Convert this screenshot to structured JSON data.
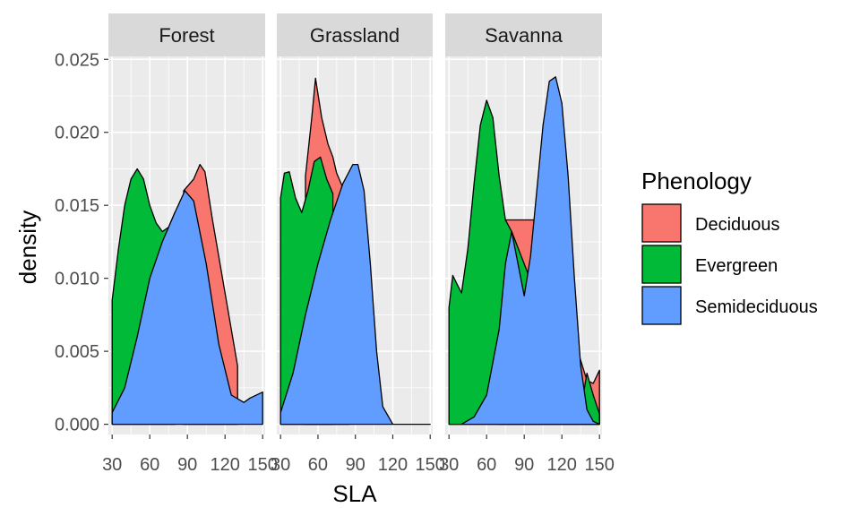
{
  "chart_data": {
    "type": "area",
    "subtype": "stacked density (faceted)",
    "xlabel": "SLA",
    "ylabel": "density",
    "xlim": [
      27,
      152
    ],
    "ylim": [
      -0.0007,
      0.0252
    ],
    "x_ticks": [
      30,
      60,
      90,
      120,
      150
    ],
    "x_tick_labels": [
      "30",
      "60",
      "90",
      "120",
      "150"
    ],
    "y_ticks": [
      0.0,
      0.005,
      0.01,
      0.015,
      0.02,
      0.025
    ],
    "y_tick_labels": [
      "0.000",
      "0.005",
      "0.010",
      "0.015",
      "0.020",
      "0.025"
    ],
    "legend": {
      "title": "Phenology",
      "position": "right",
      "entries": [
        {
          "label": "Deciduous",
          "color": "#F8766D"
        },
        {
          "label": "Evergreen",
          "color": "#00BA38"
        },
        {
          "label": "Semideciduous",
          "color": "#619CFF"
        }
      ]
    },
    "facets": [
      {
        "label": "Forest",
        "series": {
          "Deciduous": {
            "x": [
              87,
              95,
              100,
              104,
              110,
              120,
              130
            ],
            "y": [
              0.016,
              0.0168,
              0.0178,
              0.0173,
              0.014,
              0.009,
              0.004
            ]
          },
          "Evergreen": {
            "x": [
              30,
              35,
              40,
              45,
              50,
              55,
              60,
              65,
              70,
              75,
              80
            ],
            "y": [
              0.0085,
              0.012,
              0.015,
              0.0168,
              0.0175,
              0.0168,
              0.015,
              0.0138,
              0.0132,
              0.0135,
              0.0145
            ]
          },
          "Semideciduous": {
            "x": [
              30,
              40,
              50,
              60,
              70,
              80,
              88,
              95,
              105,
              115,
              125,
              135,
              140,
              150
            ],
            "y": [
              0.0008,
              0.0025,
              0.006,
              0.01,
              0.0125,
              0.0145,
              0.016,
              0.0153,
              0.011,
              0.0055,
              0.002,
              0.0015,
              0.0018,
              0.0022
            ]
          }
        }
      },
      {
        "label": "Grassland",
        "series": {
          "Deciduous": {
            "x": [
              50,
              55,
              58,
              63,
              68,
              72,
              75,
              80,
              85
            ],
            "y": [
              0.017,
              0.021,
              0.0237,
              0.021,
              0.0192,
              0.0183,
              0.0172,
              0.0162,
              0.0168
            ]
          },
          "Evergreen": {
            "x": [
              30,
              33,
              37,
              42,
              47,
              52,
              57,
              62,
              67,
              72
            ],
            "y": [
              0.0155,
              0.0172,
              0.0173,
              0.0155,
              0.0145,
              0.016,
              0.018,
              0.0183,
              0.0168,
              0.0158
            ]
          },
          "Semideciduous": {
            "x": [
              30,
              40,
              50,
              60,
              70,
              80,
              88,
              92,
              97,
              102,
              107,
              112,
              120,
              150
            ],
            "y": [
              0.0008,
              0.0035,
              0.0075,
              0.011,
              0.014,
              0.0165,
              0.0178,
              0.0178,
              0.016,
              0.011,
              0.005,
              0.0012,
              0.0,
              0.0
            ]
          }
        }
      },
      {
        "label": "Savanna",
        "series": {
          "Deciduous": {
            "x": [
              70,
              75,
              80,
              85,
              90,
              95,
              100,
              140,
              145,
              150
            ],
            "y": [
              0.014,
              0.014,
              0.014,
              0.014,
              0.014,
              0.014,
              0.014,
              0.003,
              0.0028,
              0.0037
            ]
          },
          "Evergreen": {
            "x": [
              30,
              33,
              37,
              40,
              45,
              50,
              55,
              60,
              65,
              70,
              75,
              80,
              135,
              140,
              145,
              150
            ],
            "y": [
              0.008,
              0.0102,
              0.0095,
              0.009,
              0.012,
              0.0165,
              0.0205,
              0.0222,
              0.021,
              0.017,
              0.014,
              0.0132,
              0.001,
              0.0035,
              0.002,
              0.0007
            ]
          },
          "Semideciduous": {
            "x": [
              30,
              40,
              50,
              60,
              70,
              75,
              80,
              85,
              90,
              95,
              100,
              105,
              110,
              115,
              120,
              125,
              130,
              135,
              140,
              145,
              150
            ],
            "y": [
              0.0,
              0.0,
              0.0005,
              0.002,
              0.0065,
              0.011,
              0.0132,
              0.011,
              0.0088,
              0.0115,
              0.016,
              0.0205,
              0.0235,
              0.0238,
              0.022,
              0.017,
              0.01,
              0.004,
              0.001,
              0.0002,
              0.0
            ]
          }
        }
      }
    ]
  }
}
